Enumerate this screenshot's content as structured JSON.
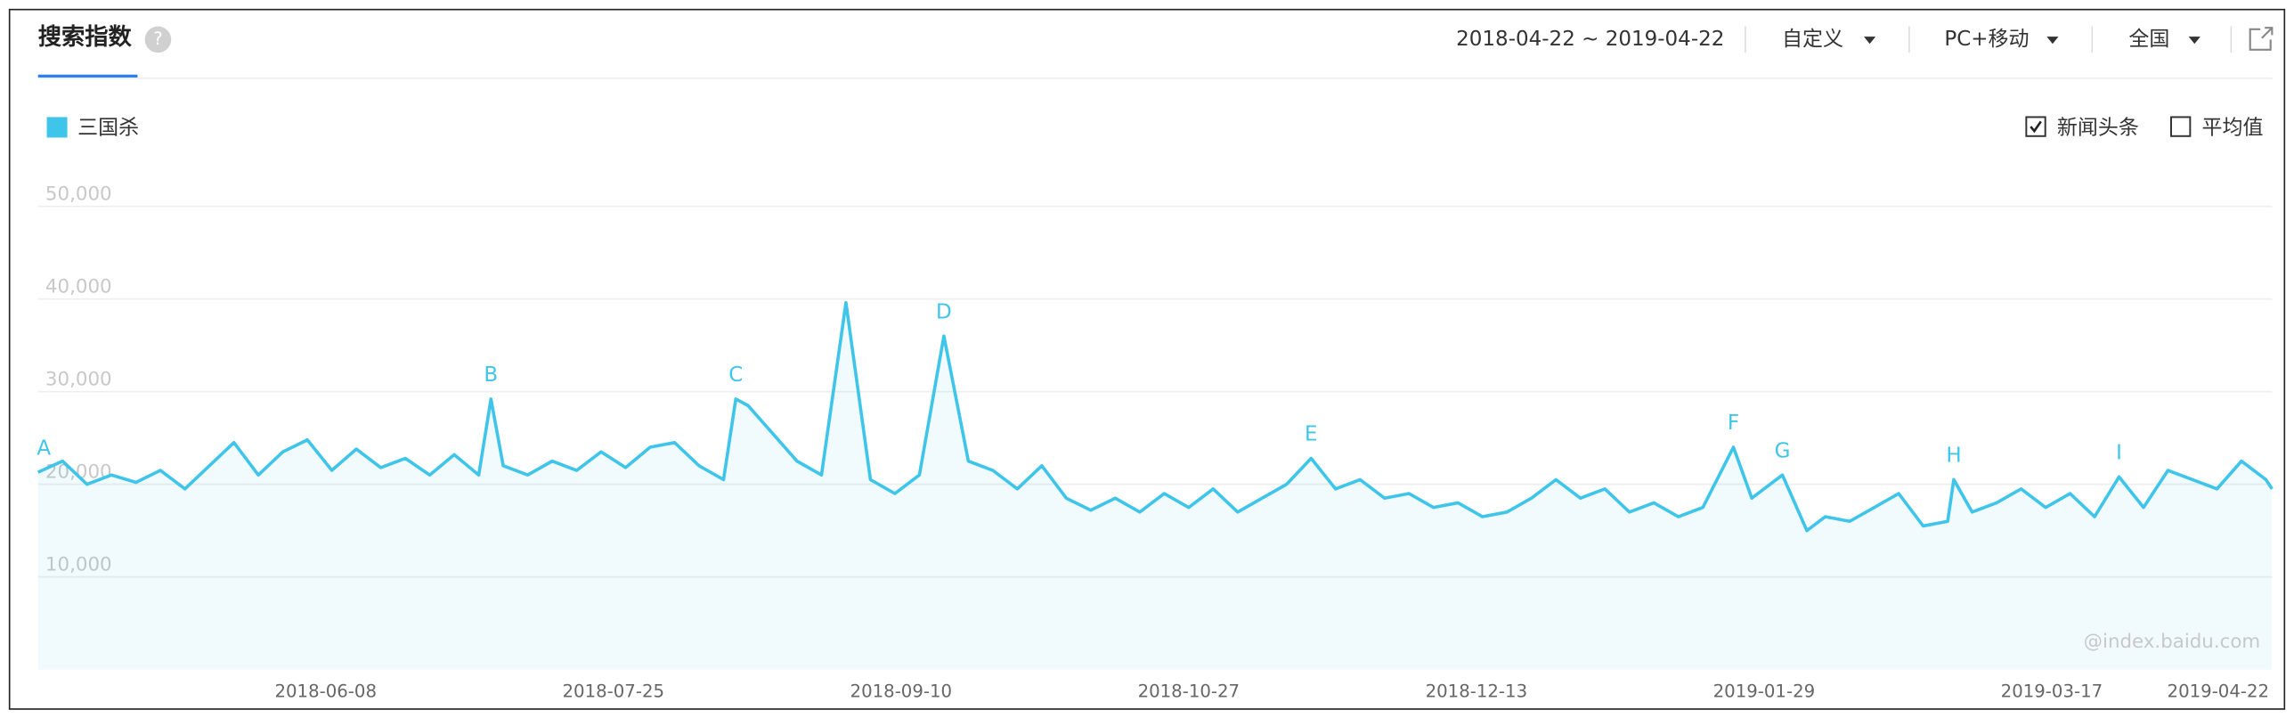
{
  "header": {
    "title": "搜索指数",
    "help_icon": "?",
    "date_range": "2018-04-22 ~ 2019-04-22",
    "period": "自定义",
    "device": "PC+移动",
    "region": "全国"
  },
  "chart_data": {
    "type": "line",
    "x": [
      "2018-04-22",
      "2018-04-26",
      "2018-04-30",
      "2018-05-04",
      "2018-05-08",
      "2018-05-12",
      "2018-05-16",
      "2018-05-20",
      "2018-05-24",
      "2018-05-28",
      "2018-06-01",
      "2018-06-05",
      "2018-06-09",
      "2018-06-13",
      "2018-06-17",
      "2018-06-21",
      "2018-06-25",
      "2018-06-29",
      "2018-07-03",
      "2018-07-05",
      "2018-07-07",
      "2018-07-11",
      "2018-07-15",
      "2018-07-19",
      "2018-07-23",
      "2018-07-27",
      "2018-07-31",
      "2018-08-04",
      "2018-08-08",
      "2018-08-12",
      "2018-08-14",
      "2018-08-16",
      "2018-08-20",
      "2018-08-24",
      "2018-08-28",
      "2018-09-01",
      "2018-09-05",
      "2018-09-09",
      "2018-09-13",
      "2018-09-17",
      "2018-09-21",
      "2018-09-25",
      "2018-09-29",
      "2018-10-03",
      "2018-10-07",
      "2018-10-11",
      "2018-10-15",
      "2018-10-19",
      "2018-10-23",
      "2018-10-27",
      "2018-10-31",
      "2018-11-04",
      "2018-11-08",
      "2018-11-12",
      "2018-11-16",
      "2018-11-20",
      "2018-11-24",
      "2018-11-28",
      "2018-12-02",
      "2018-12-06",
      "2018-12-10",
      "2018-12-14",
      "2018-12-18",
      "2018-12-22",
      "2018-12-26",
      "2018-12-30",
      "2019-01-03",
      "2019-01-07",
      "2019-01-11",
      "2019-01-15",
      "2019-01-19",
      "2019-01-24",
      "2019-01-27",
      "2019-02-01",
      "2019-02-05",
      "2019-02-08",
      "2019-02-12",
      "2019-02-16",
      "2019-02-20",
      "2019-02-24",
      "2019-02-28",
      "2019-03-01",
      "2019-03-04",
      "2019-03-08",
      "2019-03-12",
      "2019-03-16",
      "2019-03-20",
      "2019-03-24",
      "2019-03-28",
      "2019-04-01",
      "2019-04-05",
      "2019-04-09",
      "2019-04-13",
      "2019-04-17",
      "2019-04-21",
      "2019-04-22"
    ],
    "series": [
      {
        "name": "三国杀",
        "color": "#3ec5e9",
        "values": [
          21300,
          22500,
          20000,
          21000,
          20200,
          21500,
          19500,
          22000,
          24500,
          21000,
          23500,
          24800,
          21500,
          23800,
          21800,
          22800,
          21000,
          23200,
          21000,
          29200,
          22000,
          21000,
          22500,
          21500,
          23500,
          21800,
          24000,
          24500,
          22000,
          20500,
          29200,
          28500,
          25500,
          22500,
          21000,
          39600,
          20500,
          19000,
          21000,
          36000,
          22500,
          21500,
          19500,
          22000,
          18500,
          17200,
          18500,
          17000,
          19000,
          17500,
          19500,
          17000,
          18500,
          20000,
          22800,
          19500,
          20500,
          18500,
          19000,
          17500,
          18000,
          16500,
          17000,
          18500,
          20500,
          18500,
          19500,
          17000,
          18000,
          16500,
          17500,
          24000,
          18500,
          21000,
          15000,
          16500,
          16000,
          17500,
          19000,
          15500,
          16000,
          20500,
          17000,
          18000,
          19500,
          17500,
          19000,
          16500,
          20800,
          17500,
          21500,
          20500,
          19500,
          22500,
          20500,
          19500
        ]
      }
    ],
    "xlim": [
      "2018-04-22",
      "2019-04-22"
    ],
    "xticks": [
      "2018-06-08",
      "2018-07-25",
      "2018-09-10",
      "2018-10-27",
      "2018-12-13",
      "2019-01-29",
      "2019-03-17",
      "2019-04-22"
    ],
    "ylim": [
      0,
      50000
    ],
    "yticks": [
      {
        "value": 10000,
        "label": "10,000"
      },
      {
        "value": 20000,
        "label": "20,000"
      },
      {
        "value": 30000,
        "label": "30,000"
      },
      {
        "value": 40000,
        "label": "40,000"
      },
      {
        "value": 50000,
        "label": "50,000"
      }
    ],
    "grid": true,
    "annotations": [
      {
        "label": "A",
        "x": "2018-04-22"
      },
      {
        "label": "B",
        "x": "2018-07-05"
      },
      {
        "label": "C",
        "x": "2018-08-14"
      },
      {
        "label": "D",
        "x": "2018-09-17"
      },
      {
        "label": "E",
        "x": "2018-11-16"
      },
      {
        "label": "F",
        "x": "2019-01-24"
      },
      {
        "label": "G",
        "x": "2019-02-01"
      },
      {
        "label": "H",
        "x": "2019-03-01"
      },
      {
        "label": "I",
        "x": "2019-03-28"
      }
    ],
    "toggles": [
      {
        "label": "新闻头条",
        "checked": true
      },
      {
        "label": "平均值",
        "checked": false
      }
    ],
    "watermark": "@index.baidu.com"
  }
}
